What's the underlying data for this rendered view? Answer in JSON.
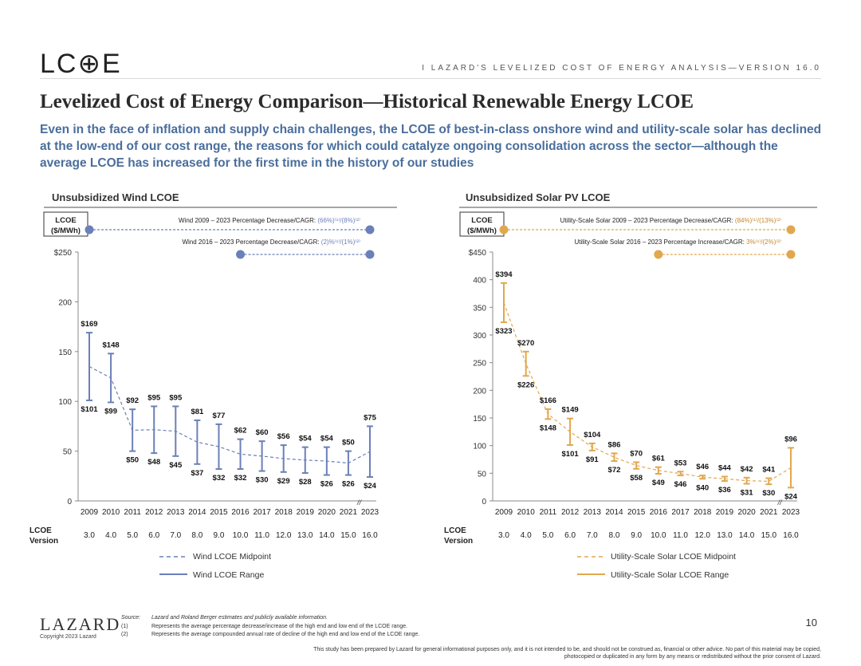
{
  "header": {
    "logo": "LC⊕E",
    "right_text": "I   LAZARD'S LEVELIZED COST OF ENERGY ANALYSIS—VERSION 16.0"
  },
  "title": "Levelized Cost of Energy Comparison—Historical Renewable Energy LCOE",
  "subtitle": "Even in the face of inflation and supply chain challenges, the LCOE of best-in-class onshore wind and utility-scale solar has declined at the low-end of our cost range, the reasons for which could catalyze ongoing consolidation across the sector—although the average LCOE has increased for the first time in the history of our studies",
  "colors": {
    "wind": "#6b80b8",
    "solar": "#e2a74e",
    "solar_text": "#c8862b",
    "subtitle": "#4a6e9c"
  },
  "chart_data": [
    {
      "type": "line",
      "title": "Unsubsidized Wind LCOE",
      "ylabel": "LCOE ($/MWh)",
      "ylim": [
        0,
        250
      ],
      "yticks": [
        "0",
        "50",
        "100",
        "150",
        "200",
        "$250"
      ],
      "categories": [
        "2009",
        "2010",
        "2011",
        "2012",
        "2013",
        "2014",
        "2015",
        "2016",
        "2017",
        "2018",
        "2019",
        "2020",
        "2021",
        "2023"
      ],
      "versions": [
        "3.0",
        "4.0",
        "5.0",
        "6.0",
        "7.0",
        "8.0",
        "9.0",
        "10.0",
        "11.0",
        "12.0",
        "13.0",
        "14.0",
        "15.0",
        "16.0"
      ],
      "version_label": "LCOE Version",
      "high": [
        169,
        148,
        92,
        95,
        95,
        81,
        77,
        62,
        60,
        56,
        54,
        54,
        50,
        75
      ],
      "low": [
        101,
        99,
        50,
        48,
        45,
        37,
        32,
        32,
        30,
        29,
        28,
        26,
        26,
        24
      ],
      "high_labels": [
        "$169",
        "$148",
        "$92",
        "$95",
        "$95",
        "$81",
        "$77",
        "$62",
        "$60",
        "$56",
        "$54",
        "$54",
        "$50",
        "$75"
      ],
      "low_labels": [
        "$101",
        "$99",
        "$50",
        "$48",
        "$45",
        "$37",
        "$32",
        "$32",
        "$30",
        "$29",
        "$28",
        "$26",
        "$26",
        "$24"
      ],
      "annotations": [
        {
          "text": "Wind 2009 – 2023 Percentage Decrease/CAGR: ",
          "value": "(66%)⁽¹⁾/(8%)⁽²⁾",
          "from": "2009",
          "to": "2023"
        },
        {
          "text": "Wind 2016 – 2023 Percentage Decrease/CAGR: ",
          "value": "(2)%⁽¹⁾/(1%)⁽²⁾",
          "from": "2016",
          "to": "2023"
        }
      ],
      "series": [
        {
          "name": "Wind LCOE Midpoint",
          "style": "dashed"
        },
        {
          "name": "Wind LCOE Range",
          "style": "solid"
        }
      ]
    },
    {
      "type": "line",
      "title": "Unsubsidized Solar PV LCOE",
      "ylabel": "LCOE ($/MWh)",
      "ylim": [
        0,
        450
      ],
      "yticks": [
        "0",
        "50",
        "100",
        "150",
        "200",
        "250",
        "300",
        "350",
        "400",
        "$450"
      ],
      "categories": [
        "2009",
        "2010",
        "2011",
        "2012",
        "2013",
        "2014",
        "2015",
        "2016",
        "2017",
        "2018",
        "2019",
        "2020",
        "2021",
        "2023"
      ],
      "versions": [
        "3.0",
        "4.0",
        "5.0",
        "6.0",
        "7.0",
        "8.0",
        "9.0",
        "10.0",
        "11.0",
        "12.0",
        "13.0",
        "14.0",
        "15.0",
        "16.0"
      ],
      "version_label": "LCOE Version",
      "high": [
        394,
        270,
        166,
        149,
        104,
        86,
        70,
        61,
        53,
        46,
        44,
        42,
        41,
        96
      ],
      "low": [
        323,
        226,
        148,
        101,
        91,
        72,
        58,
        49,
        46,
        40,
        36,
        31,
        30,
        24
      ],
      "high_labels": [
        "$394",
        "$270",
        "$166",
        "$149",
        "$104",
        "$86",
        "$70",
        "$61",
        "$53",
        "$46",
        "$44",
        "$42",
        "$41",
        "$96"
      ],
      "low_labels": [
        "$323",
        "$226",
        "$148",
        "$101",
        "$91",
        "$72",
        "$58",
        "$49",
        "$46",
        "$40",
        "$36",
        "$31",
        "$30",
        "$24"
      ],
      "annotations": [
        {
          "text": "Utility-Scale Solar 2009 – 2023 Percentage Decrease/CAGR: ",
          "value": "(84%)⁽¹⁾/(13%)⁽²⁾",
          "from": "2009",
          "to": "2023"
        },
        {
          "text": "Utility-Scale Solar 2016 – 2023 Percentage Increase/CAGR: ",
          "value": "3%⁽¹⁾/(2%)⁽²⁾",
          "from": "2016",
          "to": "2023"
        }
      ],
      "series": [
        {
          "name": "Utility-Scale Solar LCOE Midpoint",
          "style": "dashed"
        },
        {
          "name": "Utility-Scale Solar LCOE Range",
          "style": "solid"
        }
      ]
    }
  ],
  "footer": {
    "logo": "LAZARD",
    "copyright": "Copyright 2023 Lazard",
    "source_label": "Source:",
    "source_text": "Lazard and Roland Berger estimates and publicly available information.",
    "notes": [
      {
        "num": "(1)",
        "text": "Represents the average percentage decrease/increase of the high end and low end of the LCOE range."
      },
      {
        "num": "(2)",
        "text": "Represents the average compounded annual rate of decline of the high end and low end of the LCOE range."
      }
    ],
    "page_number": "10",
    "disclaimer": "This study has been prepared by Lazard for general informational purposes only, and it is not intended to be, and should not be construed as, financial or other advice. No part of this material may be copied, photocopied or duplicated in any form by any means or redistributed without the prior consent of Lazard."
  }
}
